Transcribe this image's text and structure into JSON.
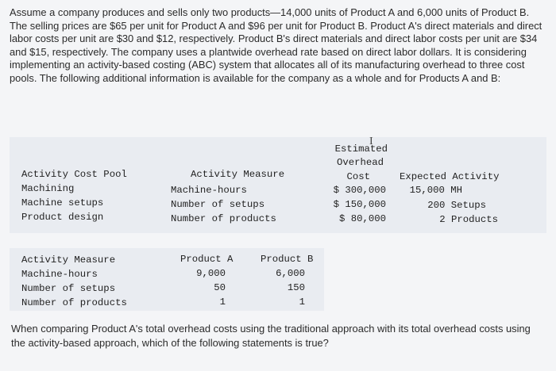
{
  "intro": "Assume a company produces and sells only two products—14,000 units of Product A and 6,000 units of Product B. The selling prices are $65 per unit for Product A and $96 per unit for Product B. Product A's direct materials and direct labor costs per unit are $30 and $12, respectively. Product B's direct materials and direct labor costs per unit are $34 and $15, respectively. The company uses a plantwide overhead rate based on direct labor dollars. It is considering implementing an activity-based costing (ABC) system that allocates all of its manufacturing overhead to three cost pools. The following additional information is available for the company as a whole and for Products A and B:",
  "table1": {
    "headers": {
      "pool": "Activity Cost Pool",
      "measure": "Activity Measure",
      "cost_line1": "Estimated",
      "cost_line2": "Overhead",
      "cost_line3": "Cost",
      "expected": "Expected Activity"
    },
    "rows": [
      {
        "pool": "Machining",
        "measure": "Machine-hours",
        "cost": "$ 300,000",
        "expected": "15,000 MH"
      },
      {
        "pool": "Machine setups",
        "measure": "Number of setups",
        "cost": "$ 150,000",
        "expected": "200 Setups"
      },
      {
        "pool": "Product design",
        "measure": "Number of products",
        "cost": "$  80,000",
        "expected": "2 Products"
      }
    ]
  },
  "table2": {
    "headers": {
      "measure": "Activity Measure",
      "a": "Product A",
      "b": "Product B"
    },
    "rows": [
      {
        "measure": "Machine-hours",
        "a": "9,000",
        "b": "6,000"
      },
      {
        "measure": "Number of setups",
        "a": "50",
        "b": "150"
      },
      {
        "measure": "Number of products",
        "a": "1",
        "b": "1"
      }
    ]
  },
  "question": "When comparing Product A's total overhead costs using the traditional approach with its total overhead costs using the activity-based approach, which of the following statements is true?"
}
